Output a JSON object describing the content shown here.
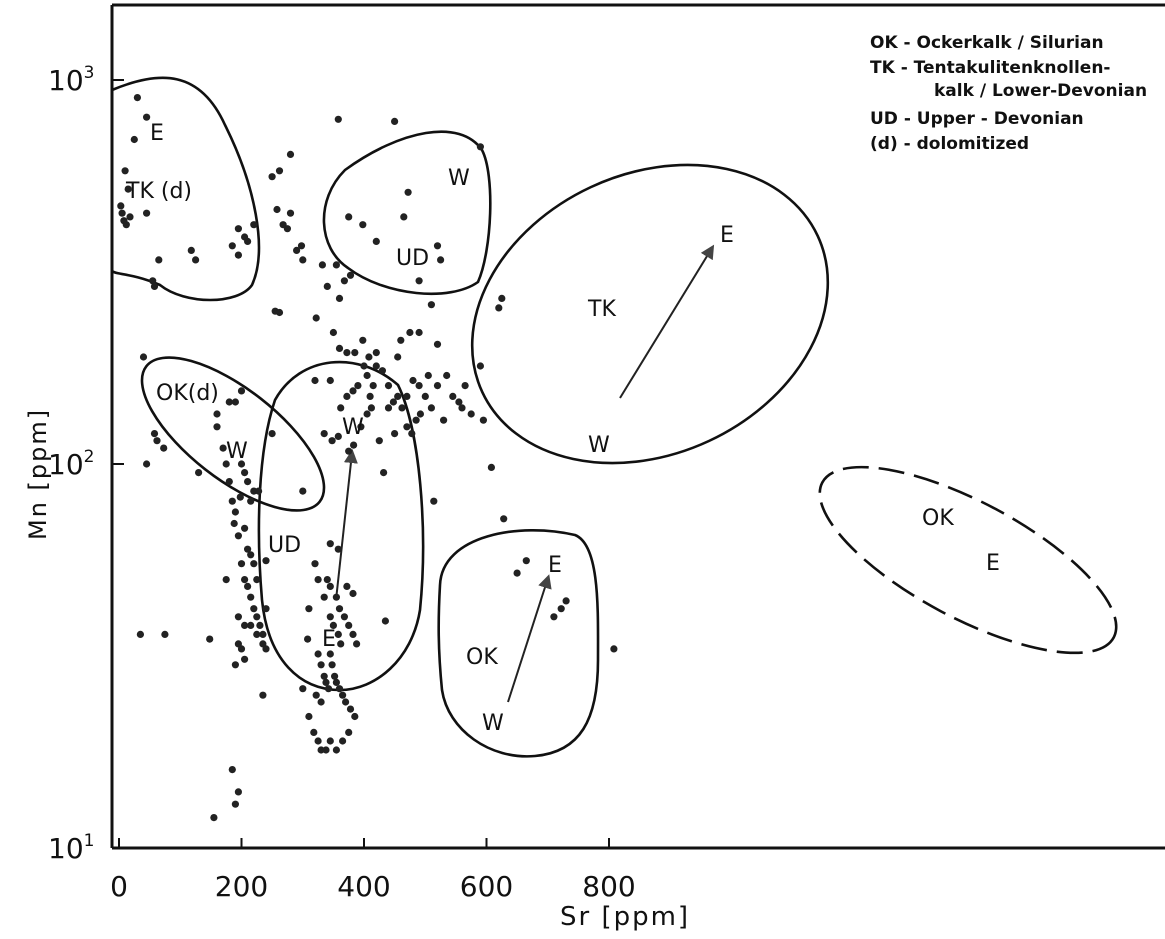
{
  "chart_data": {
    "type": "scatter",
    "xlabel": "Sr [ppm]",
    "ylabel": "Mn [ppm]",
    "xlim": [
      0,
      850
    ],
    "ylim": [
      10,
      1200
    ],
    "x_scale": "linear",
    "y_scale": "log",
    "x_ticks": [
      0,
      200,
      400,
      600,
      800
    ],
    "y_ticks": [
      {
        "value": 10,
        "base": "10",
        "exp": "1"
      },
      {
        "value": 100,
        "base": "10",
        "exp": "2"
      },
      {
        "value": 1000,
        "base": "10",
        "exp": "3"
      }
    ],
    "legend_position": "top-right",
    "legend": [
      {
        "line": "OK - Ockerkalk / Silurian"
      },
      {
        "line": "TK - Tentakulitenknollen-"
      },
      {
        "line": "kalk / Lower-Devonian"
      },
      {
        "line": "UD - Upper - Devonian"
      },
      {
        "line": "(d) - dolomitized"
      }
    ],
    "points": [
      [
        25,
        700
      ],
      [
        30,
        900
      ],
      [
        45,
        800
      ],
      [
        10,
        580
      ],
      [
        15,
        520
      ],
      [
        5,
        450
      ],
      [
        12,
        420
      ],
      [
        3,
        470
      ],
      [
        8,
        430
      ],
      [
        18,
        440
      ],
      [
        45,
        450
      ],
      [
        65,
        340
      ],
      [
        55,
        300
      ],
      [
        58,
        290
      ],
      [
        118,
        360
      ],
      [
        125,
        340
      ],
      [
        185,
        370
      ],
      [
        195,
        410
      ],
      [
        205,
        390
      ],
      [
        210,
        380
      ],
      [
        220,
        420
      ],
      [
        195,
        350
      ],
      [
        250,
        560
      ],
      [
        262,
        580
      ],
      [
        258,
        460
      ],
      [
        268,
        420
      ],
      [
        275,
        410
      ],
      [
        280,
        450
      ],
      [
        290,
        360
      ],
      [
        298,
        370
      ],
      [
        300,
        340
      ],
      [
        255,
        250
      ],
      [
        262,
        248
      ],
      [
        280,
        640
      ],
      [
        358,
        790
      ],
      [
        450,
        780
      ],
      [
        590,
        670
      ],
      [
        375,
        440
      ],
      [
        398,
        420
      ],
      [
        420,
        380
      ],
      [
        465,
        440
      ],
      [
        472,
        510
      ],
      [
        490,
        300
      ],
      [
        520,
        370
      ],
      [
        525,
        340
      ],
      [
        355,
        330
      ],
      [
        332,
        330
      ],
      [
        322,
        240
      ],
      [
        340,
        290
      ],
      [
        360,
        270
      ],
      [
        368,
        300
      ],
      [
        378,
        310
      ],
      [
        350,
        220
      ],
      [
        360,
        200
      ],
      [
        372,
        195
      ],
      [
        385,
        195
      ],
      [
        398,
        210
      ],
      [
        400,
        180
      ],
      [
        408,
        190
      ],
      [
        420,
        195
      ],
      [
        440,
        160
      ],
      [
        455,
        190
      ],
      [
        460,
        210
      ],
      [
        475,
        220
      ],
      [
        490,
        220
      ],
      [
        480,
        165
      ],
      [
        470,
        150
      ],
      [
        490,
        160
      ],
      [
        500,
        150
      ],
      [
        510,
        140
      ],
      [
        505,
        170
      ],
      [
        520,
        160
      ],
      [
        535,
        170
      ],
      [
        545,
        150
      ],
      [
        555,
        145
      ],
      [
        560,
        140
      ],
      [
        575,
        135
      ],
      [
        565,
        160
      ],
      [
        345,
        165
      ],
      [
        362,
        140
      ],
      [
        372,
        150
      ],
      [
        382,
        155
      ],
      [
        390,
        160
      ],
      [
        405,
        170
      ],
      [
        410,
        150
      ],
      [
        415,
        160
      ],
      [
        420,
        180
      ],
      [
        430,
        175
      ],
      [
        440,
        140
      ],
      [
        448,
        145
      ],
      [
        455,
        150
      ],
      [
        462,
        140
      ],
      [
        470,
        125
      ],
      [
        478,
        120
      ],
      [
        485,
        130
      ],
      [
        492,
        135
      ],
      [
        335,
        120
      ],
      [
        348,
        115
      ],
      [
        358,
        118
      ],
      [
        375,
        108
      ],
      [
        383,
        112
      ],
      [
        395,
        125
      ],
      [
        405,
        135
      ],
      [
        412,
        140
      ],
      [
        425,
        115
      ],
      [
        432,
        95
      ],
      [
        450,
        120
      ],
      [
        300,
        85
      ],
      [
        320,
        165
      ],
      [
        520,
        205
      ],
      [
        530,
        130
      ],
      [
        40,
        190
      ],
      [
        58,
        120
      ],
      [
        62,
        115
      ],
      [
        73,
        110
      ],
      [
        45,
        100
      ],
      [
        130,
        95
      ],
      [
        160,
        125
      ],
      [
        170,
        110
      ],
      [
        175,
        100
      ],
      [
        180,
        90
      ],
      [
        185,
        80
      ],
      [
        190,
        75
      ],
      [
        200,
        100
      ],
      [
        205,
        95
      ],
      [
        210,
        90
      ],
      [
        198,
        82
      ],
      [
        215,
        80
      ],
      [
        220,
        85
      ],
      [
        228,
        85
      ],
      [
        188,
        70
      ],
      [
        195,
        65
      ],
      [
        205,
        68
      ],
      [
        210,
        60
      ],
      [
        215,
        58
      ],
      [
        220,
        55
      ],
      [
        225,
        50
      ],
      [
        200,
        55
      ],
      [
        205,
        50
      ],
      [
        210,
        48
      ],
      [
        215,
        45
      ],
      [
        220,
        42
      ],
      [
        225,
        40
      ],
      [
        230,
        38
      ],
      [
        195,
        40
      ],
      [
        205,
        38
      ],
      [
        215,
        38
      ],
      [
        225,
        36
      ],
      [
        235,
        34
      ],
      [
        240,
        33
      ],
      [
        200,
        33
      ],
      [
        205,
        31
      ],
      [
        195,
        34
      ],
      [
        190,
        30
      ],
      [
        240,
        56
      ],
      [
        240,
        42
      ],
      [
        235,
        36
      ],
      [
        175,
        50
      ],
      [
        250,
        120
      ],
      [
        148,
        35
      ],
      [
        35,
        36
      ],
      [
        75,
        36
      ],
      [
        235,
        25
      ],
      [
        180,
        145
      ],
      [
        190,
        145
      ],
      [
        200,
        155
      ],
      [
        160,
        135
      ],
      [
        345,
        62
      ],
      [
        358,
        60
      ],
      [
        372,
        48
      ],
      [
        382,
        46
      ],
      [
        320,
        55
      ],
      [
        325,
        50
      ],
      [
        340,
        50
      ],
      [
        345,
        48
      ],
      [
        355,
        45
      ],
      [
        360,
        42
      ],
      [
        368,
        40
      ],
      [
        375,
        38
      ],
      [
        382,
        36
      ],
      [
        388,
        34
      ],
      [
        335,
        45
      ],
      [
        345,
        40
      ],
      [
        350,
        38
      ],
      [
        358,
        36
      ],
      [
        362,
        34
      ],
      [
        345,
        32
      ],
      [
        348,
        30
      ],
      [
        352,
        28
      ],
      [
        355,
        27
      ],
      [
        360,
        26
      ],
      [
        365,
        25
      ],
      [
        370,
        24
      ],
      [
        378,
        23
      ],
      [
        385,
        22
      ],
      [
        325,
        32
      ],
      [
        330,
        30
      ],
      [
        335,
        28
      ],
      [
        338,
        27
      ],
      [
        342,
        26
      ],
      [
        322,
        25
      ],
      [
        330,
        24
      ],
      [
        300,
        26
      ],
      [
        310,
        22
      ],
      [
        318,
        20
      ],
      [
        325,
        19
      ],
      [
        330,
        18
      ],
      [
        338,
        18
      ],
      [
        345,
        19
      ],
      [
        355,
        18
      ],
      [
        365,
        19
      ],
      [
        375,
        20
      ],
      [
        308,
        35
      ],
      [
        310,
        42
      ],
      [
        435,
        39
      ],
      [
        155,
        12
      ],
      [
        185,
        16
      ],
      [
        190,
        13
      ],
      [
        195,
        14
      ],
      [
        608,
        98
      ],
      [
        620,
        255
      ],
      [
        625,
        270
      ],
      [
        590,
        180
      ],
      [
        595,
        130
      ],
      [
        628,
        72
      ],
      [
        650,
        52
      ],
      [
        665,
        56
      ],
      [
        710,
        40
      ],
      [
        722,
        42
      ],
      [
        730,
        44
      ],
      [
        808,
        33
      ],
      [
        514,
        80
      ],
      [
        510,
        260
      ]
    ]
  },
  "regions": [
    {
      "label": "TK (d)"
    },
    {
      "label": "UD"
    },
    {
      "label": "TK"
    },
    {
      "label": "OK(d)"
    },
    {
      "label": "UD"
    },
    {
      "label": "OK"
    },
    {
      "label": "OK"
    }
  ],
  "annotations": [
    {
      "text": "E"
    },
    {
      "text": "W"
    },
    {
      "text": "E"
    },
    {
      "text": "W"
    },
    {
      "text": "W"
    },
    {
      "text": "W"
    },
    {
      "text": "E"
    },
    {
      "text": "E"
    },
    {
      "text": "W"
    },
    {
      "text": "E"
    }
  ]
}
